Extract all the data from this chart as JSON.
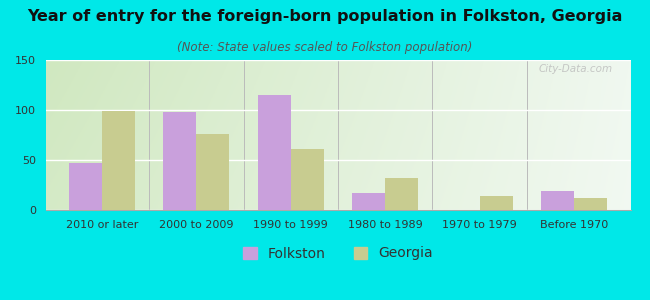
{
  "title": "Year of entry for the foreign-born population in Folkston, Georgia",
  "subtitle": "(Note: State values scaled to Folkston population)",
  "categories": [
    "2010 or later",
    "2000 to 2009",
    "1990 to 1999",
    "1980 to 1989",
    "1970 to 1979",
    "Before 1970"
  ],
  "folkston_values": [
    47,
    98,
    115,
    17,
    0,
    19
  ],
  "georgia_values": [
    99,
    76,
    61,
    32,
    14,
    12
  ],
  "folkston_color": "#c9a0dc",
  "georgia_color": "#c8cc90",
  "background_outer": "#00e8e8",
  "background_inner_left": "#d0e8c0",
  "background_inner_right": "#f0f8f0",
  "ylim": [
    0,
    150
  ],
  "yticks": [
    0,
    50,
    100,
    150
  ],
  "bar_width": 0.35,
  "title_fontsize": 11.5,
  "subtitle_fontsize": 8.5,
  "legend_fontsize": 10,
  "tick_fontsize": 8,
  "watermark": "City-Data.com"
}
